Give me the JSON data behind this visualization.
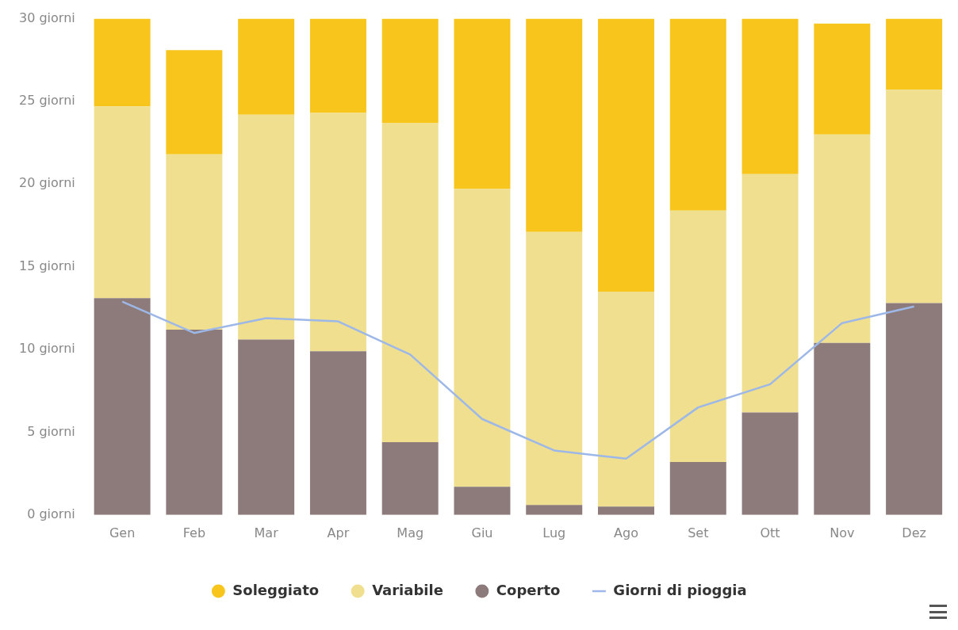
{
  "chart_data": {
    "type": "bar",
    "stacked": true,
    "categories": [
      "Gen",
      "Feb",
      "Mar",
      "Apr",
      "Mag",
      "Giu",
      "Lug",
      "Ago",
      "Set",
      "Ott",
      "Nov",
      "Dez"
    ],
    "series": [
      {
        "name": "Coperto",
        "color": "#8d7b7b",
        "values": [
          13.1,
          11.2,
          10.6,
          9.9,
          4.4,
          1.7,
          0.6,
          0.5,
          3.2,
          6.2,
          10.4,
          12.8
        ]
      },
      {
        "name": "Variabile",
        "color": "#efdf8e",
        "values": [
          11.6,
          10.6,
          13.6,
          14.4,
          19.3,
          18.0,
          16.5,
          13.0,
          15.2,
          14.4,
          12.6,
          12.9
        ]
      },
      {
        "name": "Soleggiato",
        "color": "#f7c51c",
        "values": [
          5.3,
          6.3,
          5.8,
          5.7,
          6.3,
          10.3,
          12.9,
          16.5,
          11.6,
          9.4,
          6.7,
          4.3
        ]
      },
      {
        "name": "Giorni di pioggia",
        "type": "line",
        "color": "#9db8e8",
        "values": [
          12.9,
          11.0,
          11.9,
          11.7,
          9.7,
          5.8,
          3.9,
          3.4,
          6.5,
          7.9,
          11.6,
          12.6
        ]
      }
    ],
    "ylim": [
      0,
      30
    ],
    "yticks": [
      {
        "value": 0,
        "label": "0 giorni"
      },
      {
        "value": 5,
        "label": "5 giorni"
      },
      {
        "value": 10,
        "label": "10 giorni"
      },
      {
        "value": 15,
        "label": "15 giorni"
      },
      {
        "value": 20,
        "label": "20 giorni"
      },
      {
        "value": 25,
        "label": "25 giorni"
      },
      {
        "value": 30,
        "label": "30 giorni"
      }
    ],
    "legend": "bottom",
    "grid": false
  }
}
